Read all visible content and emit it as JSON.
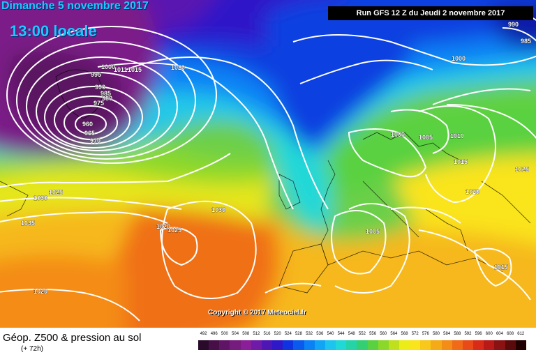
{
  "header": {
    "date": "Dimanche 5 novembre 2017",
    "local_time": "13:00 locale",
    "run": "Run GFS 12 Z du Jeudi 2 novembre 2017"
  },
  "copyright": "Copyright © 2017 Meteociel.fr",
  "footer": {
    "field_title": "Géop. Z500 & pression au sol",
    "lead_time": "(+ 72h)"
  },
  "scale": {
    "values": [
      "492",
      "496",
      "500",
      "504",
      "508",
      "512",
      "516",
      "520",
      "524",
      "528",
      "532",
      "536",
      "540",
      "544",
      "548",
      "552",
      "556",
      "560",
      "564",
      "568",
      "572",
      "576",
      "580",
      "584",
      "588",
      "592",
      "596",
      "600",
      "604",
      "608",
      "612"
    ],
    "colors": [
      "#2a0a2a",
      "#470f48",
      "#601466",
      "#761c7e",
      "#8a1f99",
      "#701aa8",
      "#4e16b5",
      "#2f18c8",
      "#0f33e0",
      "#0a5aee",
      "#0a82f5",
      "#10a5f5",
      "#1cc4ee",
      "#20d8d8",
      "#24d4a6",
      "#34cf72",
      "#5ad140",
      "#8cd82a",
      "#c0e01e",
      "#ecec18",
      "#fae41c",
      "#f8c81a",
      "#f5aa18",
      "#f48c18",
      "#f06a18",
      "#e84a18",
      "#d82c18",
      "#b81a18",
      "#8a1212",
      "#5a0a0a",
      "#200000"
    ]
  },
  "isobars": [
    "1000",
    "1011",
    "1015",
    "1020",
    "995",
    "990",
    "985",
    "980",
    "975",
    "960",
    "965",
    "970",
    "1025",
    "1030",
    "1035",
    "1030",
    "1025",
    "1020",
    "1020",
    "1000",
    "1005",
    "1010",
    "1015",
    "1020",
    "1025",
    "1005",
    "1015",
    "990",
    "985",
    "1000"
  ]
}
